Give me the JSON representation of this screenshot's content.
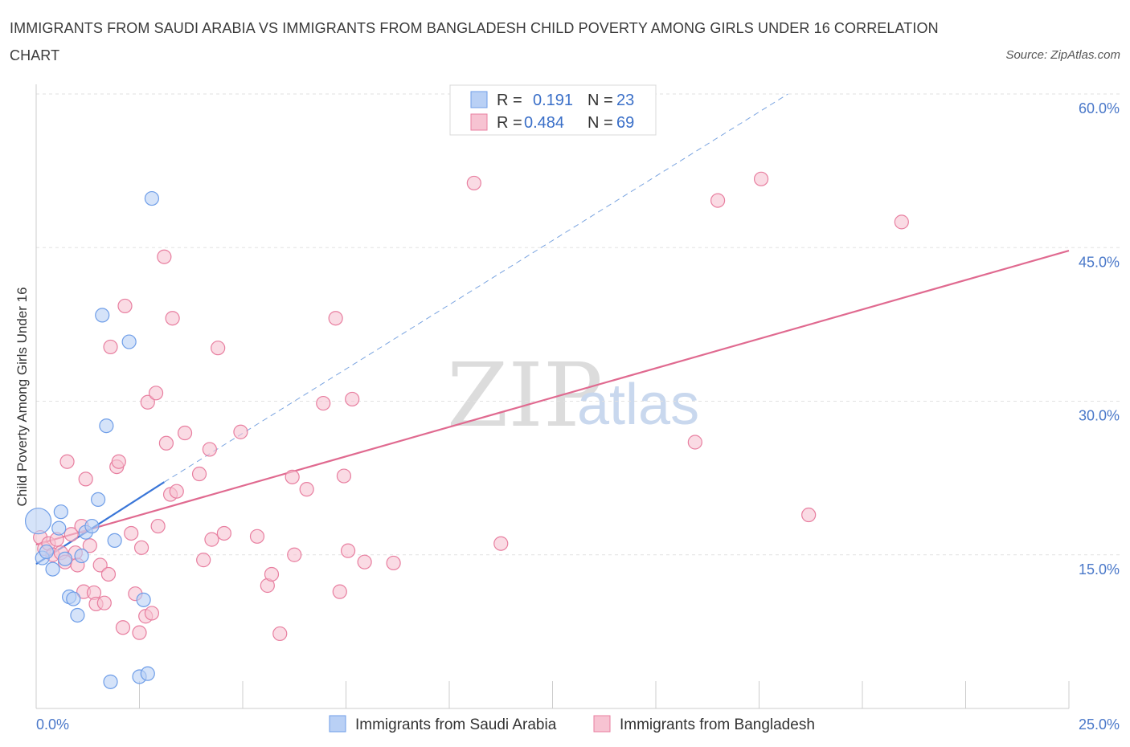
{
  "title": "IMMIGRANTS FROM SAUDI ARABIA VS IMMIGRANTS FROM BANGLADESH CHILD POVERTY AMONG GIRLS UNDER 16 CORRELATION CHART",
  "source": "Source: ZipAtlas.com",
  "watermark": {
    "zip": "ZIP",
    "atlas": "atlas"
  },
  "legend": {
    "r_label": "R =",
    "n_label": "N =",
    "series1": {
      "r": "0.191",
      "n": "23"
    },
    "series2": {
      "r": "0.484",
      "n": "69"
    }
  },
  "chart_data": {
    "type": "scatter",
    "title": "IMMIGRANTS FROM SAUDI ARABIA VS IMMIGRANTS FROM BANGLADESH CHILD POVERTY AMONG GIRLS UNDER 16 CORRELATION CHART",
    "xlabel": "",
    "ylabel": "Child Poverty Among Girls Under 16",
    "xlim": [
      0,
      25
    ],
    "ylim": [
      0,
      60
    ],
    "x_tick_labels": [
      "0.0%",
      "25.0%"
    ],
    "y_ticks": [
      15,
      30,
      45,
      60
    ],
    "y_tick_labels": [
      "15.0%",
      "30.0%",
      "45.0%",
      "60.0%"
    ],
    "grid": true,
    "legend_position": "top-center",
    "series": [
      {
        "name": "Immigrants from Saudi Arabia",
        "color": "#6f9ee8",
        "fill": "#b9d0f5",
        "r": 0.191,
        "n": 23,
        "trend": {
          "x": [
            0,
            3.1
          ],
          "y": [
            14.1,
            22.1
          ],
          "color": "#3a76d8"
        },
        "trend_extended": {
          "x": [
            3.1,
            18.2
          ],
          "y": [
            22.1,
            60
          ],
          "color": "#7aa4e0"
        },
        "points": [
          {
            "x": 0.05,
            "y": 18.3,
            "big": true
          },
          {
            "x": 0.15,
            "y": 14.7
          },
          {
            "x": 0.25,
            "y": 15.3
          },
          {
            "x": 0.4,
            "y": 13.6
          },
          {
            "x": 0.55,
            "y": 17.6
          },
          {
            "x": 0.6,
            "y": 19.2
          },
          {
            "x": 0.7,
            "y": 14.6
          },
          {
            "x": 0.8,
            "y": 10.9
          },
          {
            "x": 0.9,
            "y": 10.7
          },
          {
            "x": 1.0,
            "y": 9.1
          },
          {
            "x": 1.1,
            "y": 14.9
          },
          {
            "x": 1.2,
            "y": 17.2
          },
          {
            "x": 1.35,
            "y": 17.8
          },
          {
            "x": 1.5,
            "y": 20.4
          },
          {
            "x": 1.6,
            "y": 38.4
          },
          {
            "x": 1.7,
            "y": 27.6
          },
          {
            "x": 1.8,
            "y": 2.6
          },
          {
            "x": 1.9,
            "y": 16.4
          },
          {
            "x": 2.25,
            "y": 35.8
          },
          {
            "x": 2.5,
            "y": 3.1
          },
          {
            "x": 2.6,
            "y": 10.6
          },
          {
            "x": 2.7,
            "y": 3.4
          },
          {
            "x": 2.8,
            "y": 49.8
          }
        ]
      },
      {
        "name": "Immigrants from Bangladesh",
        "color": "#e87fa0",
        "fill": "#f7c3d2",
        "r": 0.484,
        "n": 69,
        "trend": {
          "x": [
            0,
            25
          ],
          "y": [
            16.0,
            44.7
          ],
          "color": "#e06a90"
        },
        "points": [
          {
            "x": 0.1,
            "y": 16.7
          },
          {
            "x": 0.2,
            "y": 15.6
          },
          {
            "x": 0.3,
            "y": 16.1
          },
          {
            "x": 0.4,
            "y": 15.0
          },
          {
            "x": 0.5,
            "y": 16.5
          },
          {
            "x": 0.6,
            "y": 15.2
          },
          {
            "x": 0.7,
            "y": 14.3
          },
          {
            "x": 0.75,
            "y": 24.1
          },
          {
            "x": 0.85,
            "y": 17.0
          },
          {
            "x": 0.95,
            "y": 15.2
          },
          {
            "x": 1.0,
            "y": 14.0
          },
          {
            "x": 1.1,
            "y": 17.8
          },
          {
            "x": 1.15,
            "y": 11.4
          },
          {
            "x": 1.2,
            "y": 22.4
          },
          {
            "x": 1.3,
            "y": 15.9
          },
          {
            "x": 1.4,
            "y": 11.3
          },
          {
            "x": 1.45,
            "y": 10.2
          },
          {
            "x": 1.55,
            "y": 14.0
          },
          {
            "x": 1.65,
            "y": 10.3
          },
          {
            "x": 1.75,
            "y": 13.1
          },
          {
            "x": 1.8,
            "y": 35.3
          },
          {
            "x": 1.95,
            "y": 23.6
          },
          {
            "x": 2.0,
            "y": 24.1
          },
          {
            "x": 2.1,
            "y": 7.9
          },
          {
            "x": 2.15,
            "y": 39.3
          },
          {
            "x": 2.3,
            "y": 17.1
          },
          {
            "x": 2.4,
            "y": 11.2
          },
          {
            "x": 2.5,
            "y": 7.4
          },
          {
            "x": 2.55,
            "y": 15.7
          },
          {
            "x": 2.65,
            "y": 9.0
          },
          {
            "x": 2.7,
            "y": 29.9
          },
          {
            "x": 2.8,
            "y": 9.3
          },
          {
            "x": 2.9,
            "y": 30.8
          },
          {
            "x": 2.95,
            "y": 17.8
          },
          {
            "x": 3.1,
            "y": 44.1
          },
          {
            "x": 3.15,
            "y": 25.9
          },
          {
            "x": 3.25,
            "y": 20.9
          },
          {
            "x": 3.3,
            "y": 38.1
          },
          {
            "x": 3.4,
            "y": 21.2
          },
          {
            "x": 3.6,
            "y": 26.9
          },
          {
            "x": 3.95,
            "y": 22.9
          },
          {
            "x": 4.05,
            "y": 14.5
          },
          {
            "x": 4.2,
            "y": 25.3
          },
          {
            "x": 4.25,
            "y": 16.5
          },
          {
            "x": 4.4,
            "y": 35.2
          },
          {
            "x": 4.55,
            "y": 17.1
          },
          {
            "x": 4.95,
            "y": 27.0
          },
          {
            "x": 5.35,
            "y": 16.8
          },
          {
            "x": 5.6,
            "y": 12.0
          },
          {
            "x": 5.7,
            "y": 13.1
          },
          {
            "x": 5.9,
            "y": 7.3
          },
          {
            "x": 6.2,
            "y": 22.6
          },
          {
            "x": 6.25,
            "y": 15.0
          },
          {
            "x": 6.55,
            "y": 21.4
          },
          {
            "x": 6.95,
            "y": 29.8
          },
          {
            "x": 7.25,
            "y": 38.1
          },
          {
            "x": 7.35,
            "y": 11.4
          },
          {
            "x": 7.45,
            "y": 22.7
          },
          {
            "x": 7.55,
            "y": 15.4
          },
          {
            "x": 7.65,
            "y": 30.2
          },
          {
            "x": 7.95,
            "y": 14.3
          },
          {
            "x": 8.65,
            "y": 14.2
          },
          {
            "x": 10.6,
            "y": 51.3
          },
          {
            "x": 11.25,
            "y": 16.1
          },
          {
            "x": 15.95,
            "y": 26.0
          },
          {
            "x": 16.5,
            "y": 49.6
          },
          {
            "x": 17.55,
            "y": 51.7
          },
          {
            "x": 18.7,
            "y": 18.9
          },
          {
            "x": 20.95,
            "y": 47.5
          }
        ]
      }
    ]
  }
}
